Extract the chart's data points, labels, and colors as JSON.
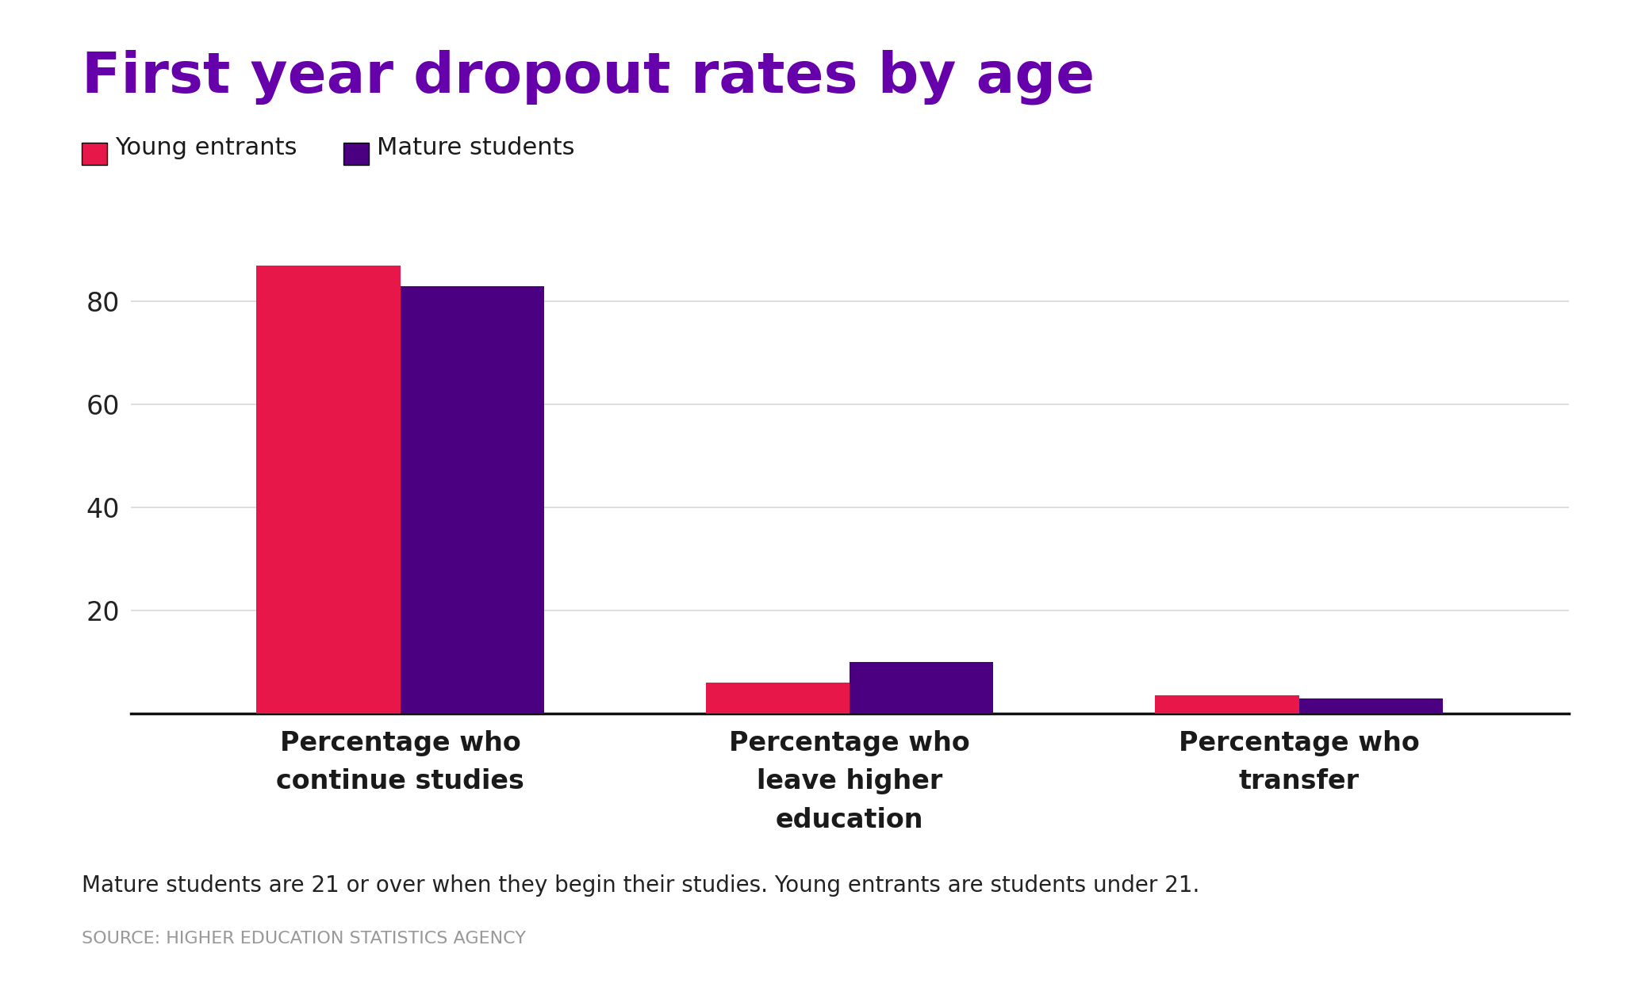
{
  "title": "First year dropout rates by age",
  "title_color": "#6600aa",
  "categories": [
    "Percentage who\ncontinue studies",
    "Percentage who\nleave higher\neducation",
    "Percentage who\ntransfer"
  ],
  "young_entrants": [
    87,
    6,
    3.5
  ],
  "mature_students": [
    83,
    10,
    3
  ],
  "young_color": "#e8174a",
  "mature_color": "#4b0082",
  "legend_young": "Young entrants",
  "legend_mature": "Mature students",
  "ylim": [
    0,
    100
  ],
  "yticks": [
    20,
    40,
    60,
    80
  ],
  "footnote1": "Mature students are 21 or over when they begin their studies. Young entrants are students under 21.",
  "footnote2": "SOURCE: HIGHER EDUCATION STATISTICS AGENCY",
  "background_color": "#ffffff",
  "bar_width": 0.32
}
